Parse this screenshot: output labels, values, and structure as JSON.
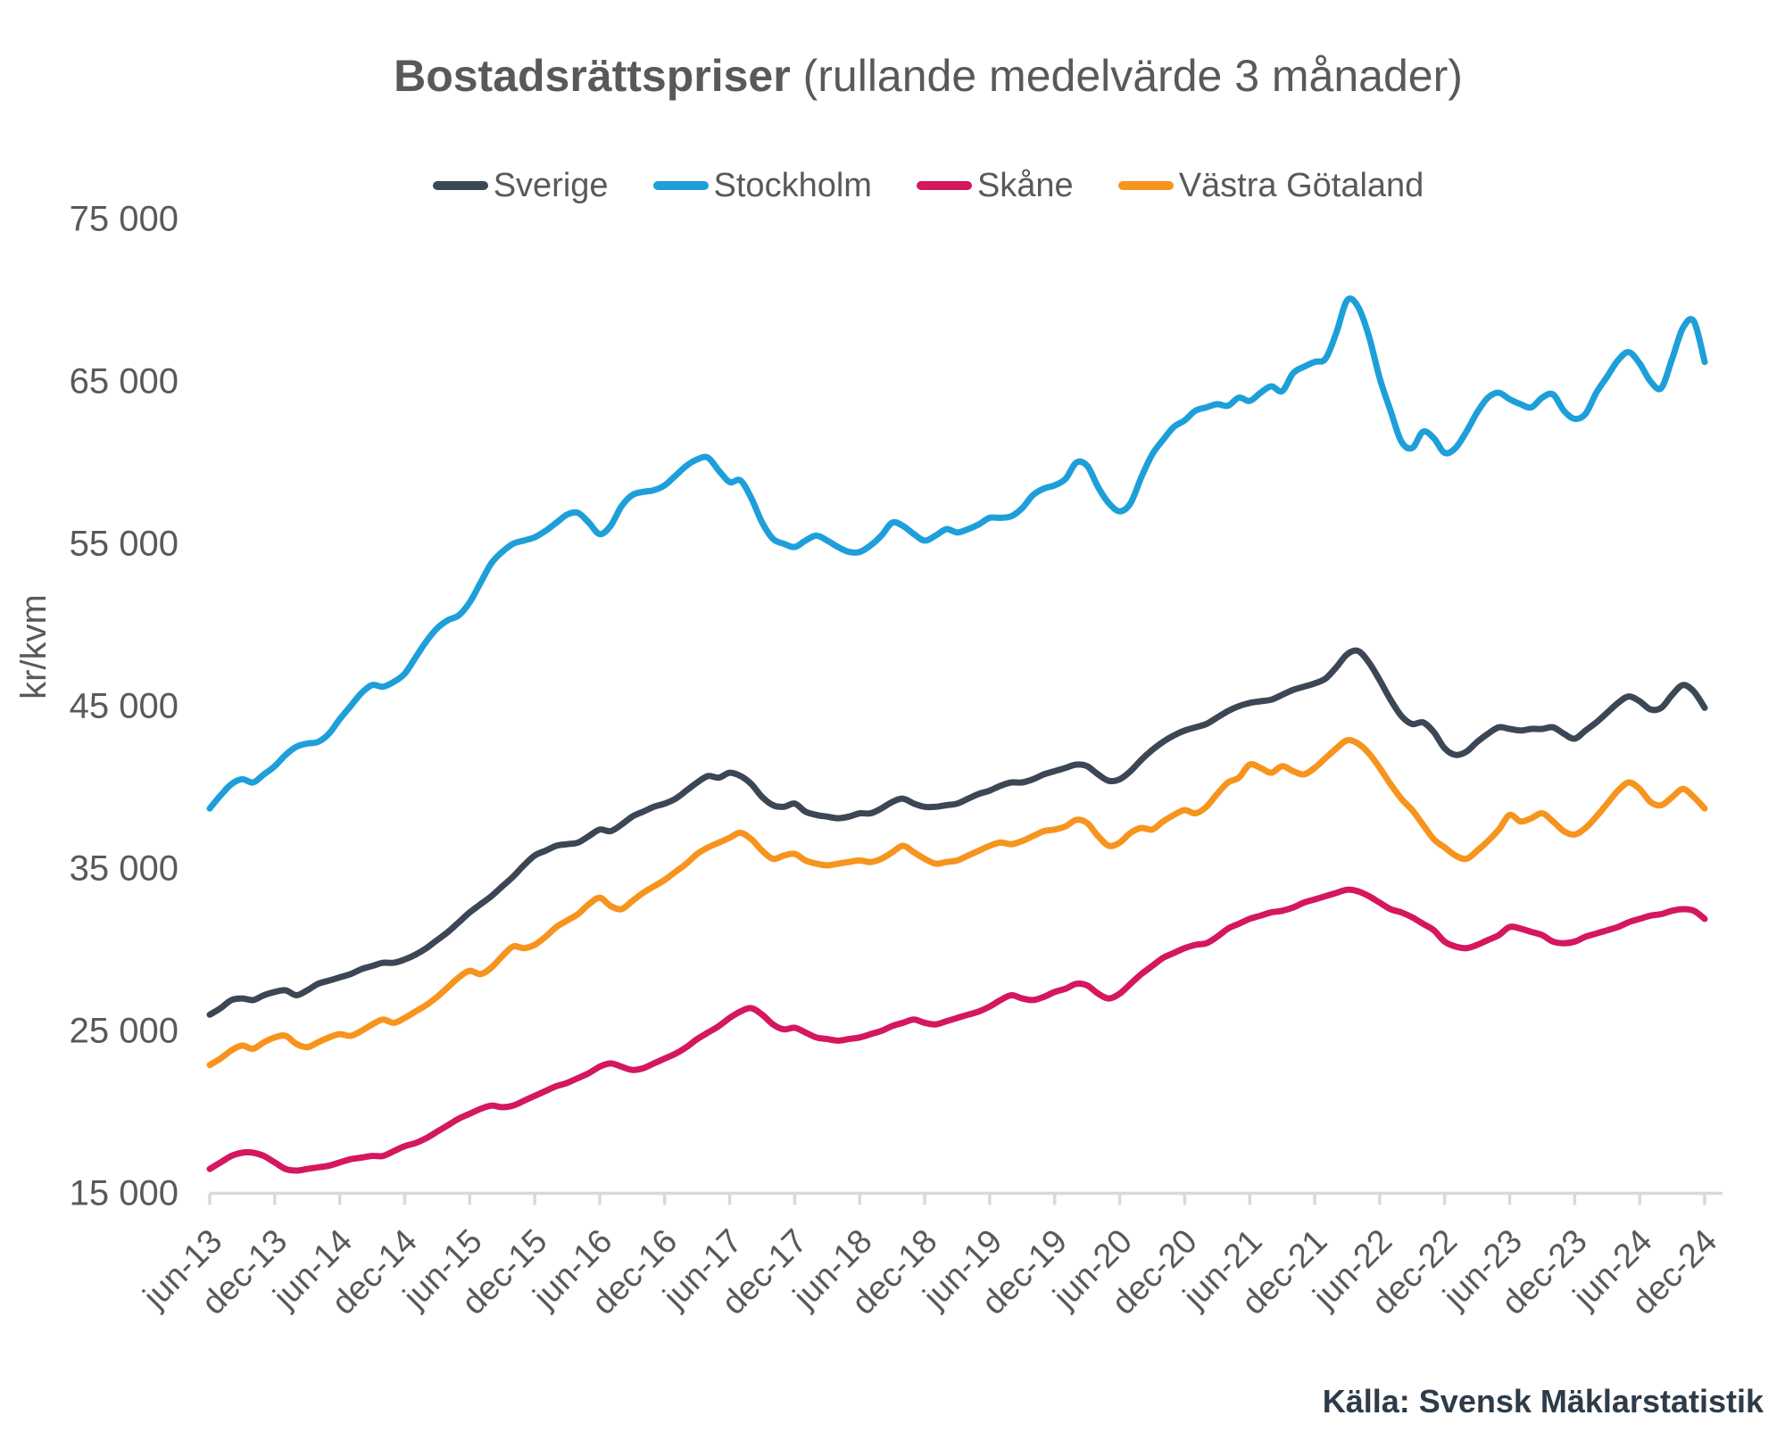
{
  "title": {
    "main": "Bostadsrättspriser",
    "suffix": "(rullande medelvärde 3 månader)"
  },
  "y_axis_title": "kr/kvm",
  "source_note": "Källa: Svensk Mäklarstatistik",
  "colors": {
    "text": "#595959",
    "axis": "#d9d9d9",
    "source_text": "#2e3b48",
    "background": "#ffffff"
  },
  "chart_data": {
    "type": "line",
    "title": "Bostadsrättspriser (rullande medelvärde 3 månader)",
    "ylabel": "kr/kvm",
    "xlabel": "",
    "grid": false,
    "legend_position": "top",
    "ylim": [
      15000,
      75000
    ],
    "y_ticks": [
      15000,
      25000,
      35000,
      45000,
      55000,
      65000,
      75000
    ],
    "x_start": "jun-13",
    "x_end": "dec-24",
    "x_points_per_tick": 6,
    "x_tick_labels": [
      "jun-13",
      "dec-13",
      "jun-14",
      "dec-14",
      "jun-15",
      "dec-15",
      "jun-16",
      "dec-16",
      "jun-17",
      "dec-17",
      "jun-18",
      "dec-18",
      "jun-19",
      "dec-19",
      "jun-20",
      "dec-20",
      "jun-21",
      "dec-21",
      "jun-22",
      "dec-22",
      "jun-23",
      "dec-23",
      "jun-24",
      "dec-24"
    ],
    "series": [
      {
        "name": "Sverige",
        "color": "#3b4754",
        "values": [
          26000,
          26400,
          26900,
          27000,
          26900,
          27200,
          27400,
          27500,
          27200,
          27500,
          27900,
          28100,
          28300,
          28500,
          28800,
          29000,
          29200,
          29200,
          29400,
          29700,
          30100,
          30600,
          31100,
          31700,
          32300,
          32800,
          33300,
          33900,
          34500,
          35200,
          35800,
          36100,
          36400,
          36500,
          36600,
          37000,
          37400,
          37300,
          37700,
          38200,
          38500,
          38800,
          39000,
          39300,
          39800,
          40300,
          40700,
          40600,
          40900,
          40700,
          40200,
          39400,
          38900,
          38800,
          39000,
          38500,
          38300,
          38200,
          38100,
          38200,
          38400,
          38400,
          38700,
          39100,
          39300,
          39000,
          38800,
          38800,
          38900,
          39000,
          39300,
          39600,
          39800,
          40100,
          40300,
          40300,
          40500,
          40800,
          41000,
          41200,
          41400,
          41300,
          40800,
          40400,
          40500,
          41000,
          41700,
          42300,
          42800,
          43200,
          43500,
          43700,
          43900,
          44300,
          44700,
          45000,
          45200,
          45300,
          45400,
          45700,
          46000,
          46200,
          46400,
          46700,
          47400,
          48200,
          48400,
          47700,
          46600,
          45400,
          44400,
          43900,
          44000,
          43400,
          42400,
          42000,
          42200,
          42800,
          43300,
          43700,
          43600,
          43500,
          43600,
          43600,
          43700,
          43300,
          43000,
          43500,
          44000,
          44600,
          45200,
          45600,
          45300,
          44800,
          44900,
          45700,
          46300,
          45900,
          44900
        ]
      },
      {
        "name": "Stockholm",
        "color": "#1d9fd9",
        "values": [
          38700,
          39500,
          40200,
          40500,
          40300,
          40800,
          41300,
          42000,
          42500,
          42700,
          42800,
          43300,
          44200,
          45000,
          45800,
          46300,
          46200,
          46500,
          47000,
          48000,
          49000,
          49800,
          50300,
          50600,
          51400,
          52600,
          53800,
          54500,
          55000,
          55200,
          55400,
          55800,
          56300,
          56800,
          56900,
          56300,
          55600,
          56100,
          57300,
          58000,
          58200,
          58300,
          58600,
          59200,
          59800,
          60200,
          60300,
          59500,
          58800,
          58900,
          57800,
          56300,
          55300,
          55000,
          54800,
          55200,
          55500,
          55200,
          54800,
          54500,
          54500,
          54900,
          55500,
          56300,
          56100,
          55600,
          55200,
          55500,
          55900,
          55700,
          55900,
          56200,
          56600,
          56600,
          56700,
          57200,
          58000,
          58400,
          58600,
          59000,
          60000,
          59800,
          58500,
          57500,
          57000,
          57500,
          59100,
          60500,
          61400,
          62200,
          62600,
          63200,
          63400,
          63600,
          63500,
          64000,
          63800,
          64300,
          64700,
          64400,
          65500,
          65900,
          66200,
          66400,
          68000,
          70000,
          69600,
          67800,
          65200,
          63200,
          61300,
          60900,
          61900,
          61500,
          60600,
          60900,
          61900,
          63100,
          64000,
          64300,
          63900,
          63600,
          63400,
          64000,
          64200,
          63200,
          62700,
          63000,
          64300,
          65300,
          66300,
          66800,
          66100,
          65000,
          64600,
          66400,
          68300,
          68700,
          66200
        ]
      },
      {
        "name": "Skåne",
        "color": "#d4175e",
        "values": [
          16500,
          16900,
          17300,
          17500,
          17500,
          17300,
          16900,
          16500,
          16400,
          16500,
          16600,
          16700,
          16900,
          17100,
          17200,
          17300,
          17300,
          17600,
          17900,
          18100,
          18400,
          18800,
          19200,
          19600,
          19900,
          20200,
          20400,
          20300,
          20400,
          20700,
          21000,
          21300,
          21600,
          21800,
          22100,
          22400,
          22800,
          23000,
          22800,
          22600,
          22700,
          23000,
          23300,
          23600,
          24000,
          24500,
          24900,
          25300,
          25800,
          26200,
          26400,
          26000,
          25400,
          25100,
          25200,
          24900,
          24600,
          24500,
          24400,
          24500,
          24600,
          24800,
          25000,
          25300,
          25500,
          25700,
          25500,
          25400,
          25600,
          25800,
          26000,
          26200,
          26500,
          26900,
          27200,
          27000,
          26900,
          27100,
          27400,
          27600,
          27900,
          27800,
          27300,
          27000,
          27300,
          27900,
          28500,
          29000,
          29500,
          29800,
          30100,
          30300,
          30400,
          30800,
          31300,
          31600,
          31900,
          32100,
          32300,
          32400,
          32600,
          32900,
          33100,
          33300,
          33500,
          33700,
          33600,
          33300,
          32900,
          32500,
          32300,
          32000,
          31600,
          31200,
          30500,
          30200,
          30100,
          30300,
          30600,
          30900,
          31400,
          31300,
          31100,
          30900,
          30500,
          30400,
          30500,
          30800,
          31000,
          31200,
          31400,
          31700,
          31900,
          32100,
          32200,
          32400,
          32500,
          32400,
          31900
        ]
      },
      {
        "name": "Västra Götaland",
        "color": "#f7941d",
        "values": [
          22900,
          23300,
          23800,
          24100,
          23900,
          24300,
          24600,
          24700,
          24200,
          24000,
          24300,
          24600,
          24800,
          24700,
          25000,
          25400,
          25700,
          25500,
          25800,
          26200,
          26600,
          27100,
          27700,
          28300,
          28700,
          28500,
          28900,
          29600,
          30200,
          30100,
          30300,
          30800,
          31400,
          31800,
          32200,
          32800,
          33200,
          32700,
          32500,
          33000,
          33500,
          33900,
          34300,
          34800,
          35300,
          35900,
          36300,
          36600,
          36900,
          37200,
          36800,
          36100,
          35600,
          35800,
          35900,
          35500,
          35300,
          35200,
          35300,
          35400,
          35500,
          35400,
          35600,
          36000,
          36400,
          36000,
          35600,
          35300,
          35400,
          35500,
          35800,
          36100,
          36400,
          36600,
          36500,
          36700,
          37000,
          37300,
          37400,
          37600,
          38000,
          37800,
          37000,
          36400,
          36600,
          37200,
          37500,
          37400,
          37900,
          38300,
          38600,
          38400,
          38800,
          39600,
          40300,
          40600,
          41400,
          41200,
          40900,
          41300,
          41000,
          40800,
          41200,
          41800,
          42400,
          42900,
          42700,
          42100,
          41200,
          40200,
          39300,
          38600,
          37700,
          36800,
          36300,
          35800,
          35600,
          36100,
          36700,
          37400,
          38300,
          37900,
          38100,
          38400,
          37900,
          37300,
          37100,
          37500,
          38200,
          39000,
          39800,
          40300,
          39900,
          39100,
          38900,
          39400,
          39900,
          39400,
          38700
        ]
      }
    ]
  }
}
